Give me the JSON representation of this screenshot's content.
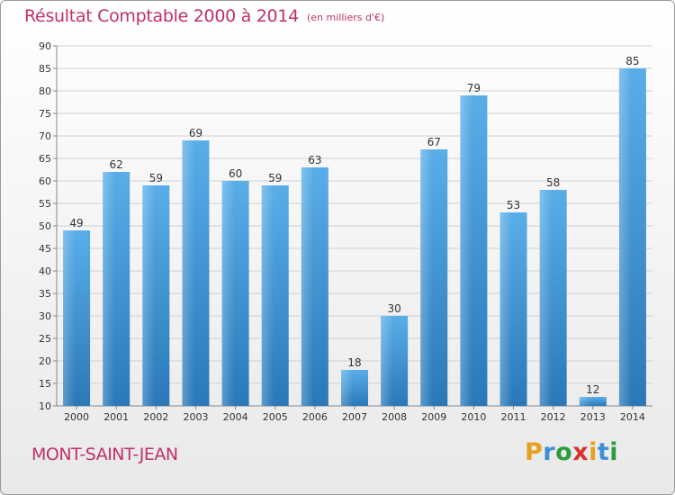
{
  "header": {
    "title": "Résultat Comptable 2000 à 2014",
    "unit": "(en milliers d'€)"
  },
  "footer": {
    "commune": "MONT-SAINT-JEAN",
    "logo_letters": [
      "P",
      "r",
      "o",
      "x",
      "i",
      "t",
      "i"
    ],
    "logo_colors": [
      "#e8a020",
      "#3d8fd8",
      "#2e9b3e",
      "#d83030",
      "#e8a020",
      "#3d8fd8",
      "#2e9b3e"
    ]
  },
  "colors": {
    "title": "#c0306a",
    "bar": "#4aa0e0",
    "bar_dark": "#2f7fc0",
    "grid": "#d0d0d0",
    "axis_text": "#333333"
  },
  "chart_data": {
    "type": "bar",
    "title": "Résultat Comptable 2000 à 2014",
    "xlabel": "",
    "ylabel": "",
    "ylim": [
      10,
      90
    ],
    "yticks": [
      10,
      15,
      20,
      25,
      30,
      35,
      40,
      45,
      50,
      55,
      60,
      65,
      70,
      75,
      80,
      85,
      90
    ],
    "grid": true,
    "categories": [
      "2000",
      "2001",
      "2002",
      "2003",
      "2004",
      "2005",
      "2006",
      "2007",
      "2008",
      "2009",
      "2010",
      "2011",
      "2012",
      "2013",
      "2014"
    ],
    "values": [
      49,
      62,
      59,
      69,
      60,
      59,
      63,
      18,
      30,
      67,
      79,
      53,
      58,
      12,
      85
    ]
  }
}
